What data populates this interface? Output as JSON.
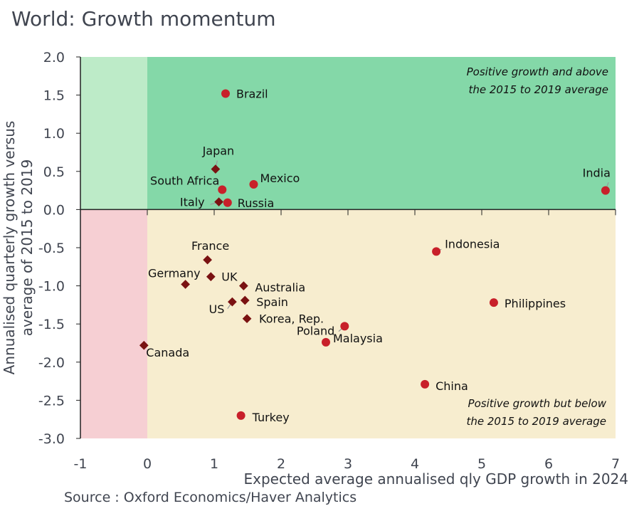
{
  "title": "World: Growth momentum",
  "source": "Source : Oxford Economics/Haver Analytics",
  "chart_data": {
    "type": "scatter",
    "title": "World: Growth momentum",
    "xlabel": "Expected average annualised qly GDP growth in 2024",
    "ylabel": "Annualised quarterly growth versus average of 2015 to 2019",
    "xlim": [
      -1,
      7
    ],
    "ylim": [
      -3.0,
      2.0
    ],
    "xticks": [
      "-1",
      "0",
      "1",
      "2",
      "3",
      "4",
      "5",
      "6",
      "7"
    ],
    "yticks": [
      "2.0",
      "1.5",
      "1.0",
      "0.5",
      "0.0",
      "-0.5",
      "-1.0",
      "-1.5",
      "-2.0",
      "-2.5",
      "-3.0"
    ],
    "grid": false,
    "annotations": {
      "top": [
        "Positive growth and above",
        "the 2015 to 2019 average"
      ],
      "bottom": [
        "Positive growth but below",
        "the 2015 to 2019 average"
      ]
    },
    "colors": {
      "circle": "#c8202a",
      "diamond": "#7a1212",
      "q_top": "#84d8a8",
      "q_top_left": "#bdebc8",
      "q_bottom": "#f7edcf",
      "q_bottom_left": "#f6cfd3"
    },
    "points": [
      {
        "label": "Brazil",
        "x": 1.17,
        "y": 1.52,
        "marker": "circle"
      },
      {
        "label": "Japan",
        "x": 1.02,
        "y": 0.53,
        "marker": "diamond"
      },
      {
        "label": "South Africa",
        "x": 1.12,
        "y": 0.26,
        "marker": "circle"
      },
      {
        "label": "Mexico",
        "x": 1.59,
        "y": 0.33,
        "marker": "circle"
      },
      {
        "label": "Italy",
        "x": 1.07,
        "y": 0.1,
        "marker": "diamond"
      },
      {
        "label": "Russia",
        "x": 1.2,
        "y": 0.09,
        "marker": "circle"
      },
      {
        "label": "India",
        "x": 6.85,
        "y": 0.25,
        "marker": "circle"
      },
      {
        "label": "Indonesia",
        "x": 4.32,
        "y": -0.55,
        "marker": "circle"
      },
      {
        "label": "France",
        "x": 0.9,
        "y": -0.66,
        "marker": "diamond"
      },
      {
        "label": "UK",
        "x": 0.95,
        "y": -0.88,
        "marker": "diamond"
      },
      {
        "label": "Germany",
        "x": 0.57,
        "y": -0.98,
        "marker": "diamond"
      },
      {
        "label": "Australia",
        "x": 1.44,
        "y": -1.0,
        "marker": "diamond"
      },
      {
        "label": "Spain",
        "x": 1.46,
        "y": -1.19,
        "marker": "diamond"
      },
      {
        "label": "US",
        "x": 1.27,
        "y": -1.21,
        "marker": "diamond"
      },
      {
        "label": "Korea, Rep.",
        "x": 1.49,
        "y": -1.43,
        "marker": "diamond"
      },
      {
        "label": "Poland",
        "x": 2.95,
        "y": -1.53,
        "marker": "circle"
      },
      {
        "label": "Malaysia",
        "x": 2.67,
        "y": -1.74,
        "marker": "circle"
      },
      {
        "label": "Philippines",
        "x": 5.18,
        "y": -1.22,
        "marker": "circle"
      },
      {
        "label": "Canada",
        "x": -0.05,
        "y": -1.78,
        "marker": "diamond"
      },
      {
        "label": "China",
        "x": 4.15,
        "y": -2.29,
        "marker": "circle"
      },
      {
        "label": "Turkey",
        "x": 1.4,
        "y": -2.7,
        "marker": "circle"
      }
    ]
  }
}
